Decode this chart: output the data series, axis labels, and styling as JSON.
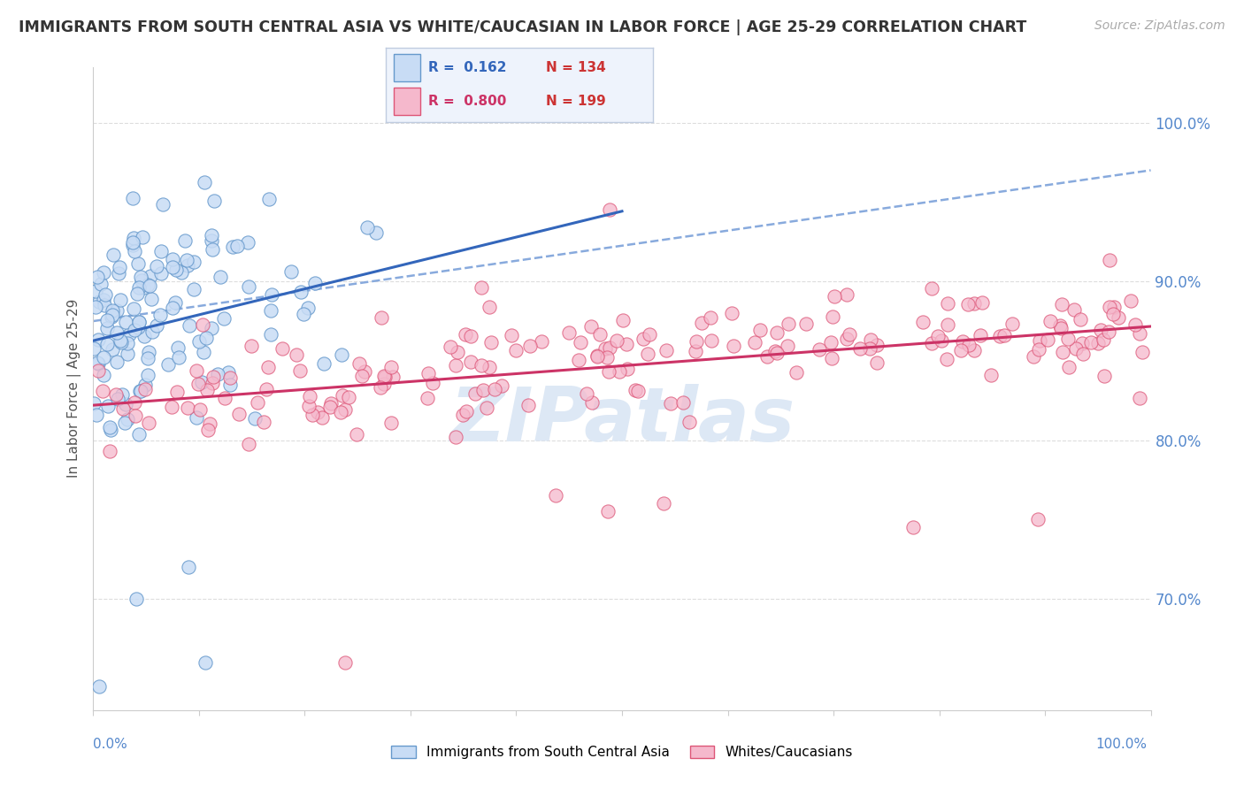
{
  "title": "IMMIGRANTS FROM SOUTH CENTRAL ASIA VS WHITE/CAUCASIAN IN LABOR FORCE | AGE 25-29 CORRELATION CHART",
  "source": "Source: ZipAtlas.com",
  "ylabel": "In Labor Force | Age 25-29",
  "right_yticks": [
    0.7,
    0.8,
    0.9,
    1.0
  ],
  "right_ytick_labels": [
    "70.0%",
    "80.0%",
    "90.0%",
    "100.0%"
  ],
  "blue_R": 0.162,
  "blue_N": 134,
  "pink_R": 0.8,
  "pink_N": 199,
  "blue_color": "#c8dcf5",
  "pink_color": "#f5b8cc",
  "blue_edge_color": "#6699cc",
  "pink_edge_color": "#dd5577",
  "blue_line_color": "#3366bb",
  "pink_line_color": "#cc3366",
  "dashed_line_color": "#88aadd",
  "legend_box_color": "#eef3fc",
  "legend_border_color": "#c0cce0",
  "watermark_color": "#dde8f5",
  "background_color": "#ffffff",
  "xlim": [
    0.0,
    1.0
  ],
  "ylim": [
    0.63,
    1.035
  ],
  "grid_color": "#dddddd",
  "axis_color": "#cccccc",
  "tick_label_color": "#5588cc",
  "text_color": "#333333",
  "source_color": "#aaaaaa"
}
